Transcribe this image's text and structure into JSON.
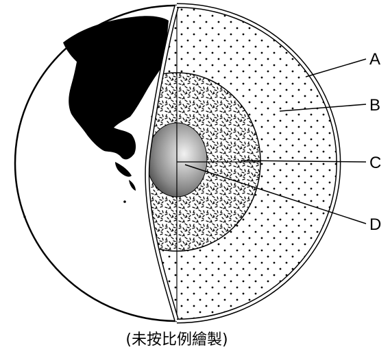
{
  "labels": {
    "a": "A",
    "b": "B",
    "c": "C",
    "d": "D"
  },
  "caption": "(未按比例繪製)",
  "colors": {
    "ink": "#000000",
    "paper": "#ffffff",
    "core_highlight": "#f2f2f2",
    "core_shadow": "#1a1a1a"
  }
}
